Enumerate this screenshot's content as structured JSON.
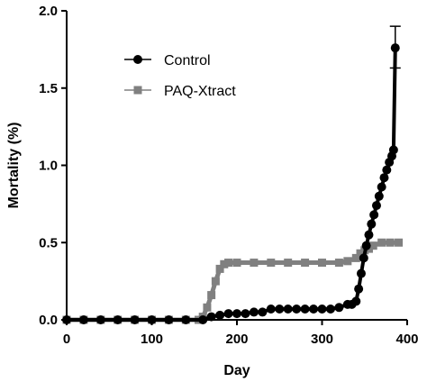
{
  "chart_data": {
    "type": "line",
    "title": "",
    "xlabel": "Day",
    "ylabel": "Mortality (%)",
    "xlim": [
      0,
      400
    ],
    "ylim": [
      0,
      2.0
    ],
    "x_ticks": [
      0,
      100,
      200,
      300,
      400
    ],
    "y_ticks": [
      0.0,
      0.5,
      1.0,
      1.5,
      2.0
    ],
    "x_tick_labels": [
      "0",
      "100",
      "200",
      "300",
      "400"
    ],
    "y_tick_labels": [
      "0.0",
      "0.5",
      "1.0",
      "1.5",
      "2.0"
    ],
    "grid": false,
    "legend_position": "top-left",
    "series": [
      {
        "name": "Control",
        "marker": "circle",
        "color": "#000000",
        "x": [
          0,
          20,
          40,
          60,
          80,
          100,
          120,
          140,
          160,
          170,
          180,
          190,
          200,
          210,
          220,
          230,
          240,
          250,
          260,
          270,
          280,
          290,
          300,
          310,
          320,
          330,
          335,
          340,
          343,
          346,
          349,
          352,
          355,
          358,
          361,
          364,
          367,
          370,
          373,
          376,
          379,
          382,
          384,
          386
        ],
        "y": [
          0,
          0,
          0,
          0,
          0,
          0,
          0,
          0,
          0,
          0.02,
          0.03,
          0.04,
          0.04,
          0.04,
          0.05,
          0.05,
          0.07,
          0.07,
          0.07,
          0.07,
          0.07,
          0.07,
          0.07,
          0.07,
          0.08,
          0.1,
          0.1,
          0.12,
          0.2,
          0.3,
          0.4,
          0.48,
          0.55,
          0.62,
          0.68,
          0.74,
          0.8,
          0.86,
          0.92,
          0.97,
          1.02,
          1.06,
          1.1,
          1.76
        ],
        "error_bar": {
          "x": 386,
          "y": 1.76,
          "lower": 1.63,
          "upper": 1.9
        }
      },
      {
        "name": "PAQ-Xtract",
        "marker": "square",
        "color": "#808080",
        "x": [
          0,
          20,
          40,
          60,
          80,
          100,
          120,
          140,
          155,
          160,
          165,
          170,
          175,
          180,
          185,
          190,
          200,
          220,
          240,
          260,
          280,
          300,
          320,
          330,
          340,
          345,
          350,
          355,
          360,
          370,
          380,
          390
        ],
        "y": [
          0,
          0,
          0,
          0,
          0,
          0,
          0,
          0,
          0,
          0.02,
          0.08,
          0.16,
          0.25,
          0.33,
          0.36,
          0.37,
          0.37,
          0.37,
          0.37,
          0.37,
          0.37,
          0.37,
          0.37,
          0.38,
          0.4,
          0.43,
          0.45,
          0.46,
          0.48,
          0.5,
          0.5,
          0.5
        ]
      }
    ]
  }
}
